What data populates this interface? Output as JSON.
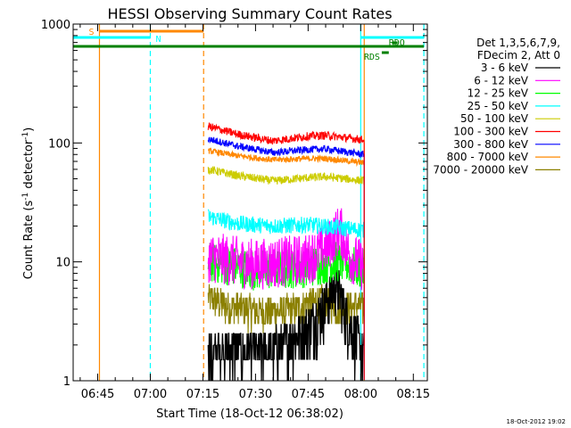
{
  "title": "HESSI Observing Summary Count Rates",
  "timestamp": "18-Oct-2012 19:02",
  "chart_data": {
    "type": "line",
    "title": "HESSI Observing Summary Count Rates",
    "xlabel": "Start Time (18-Oct-12 06:38:02)",
    "ylabel_main": "Count Rate (s",
    "ylabel_sup1": "-1",
    "ylabel_mid": " detector",
    "ylabel_sup2": "-1",
    "ylabel_end": ")",
    "y_scale": "log",
    "ylim": [
      1,
      1000
    ],
    "xlim": [
      "06:38",
      "08:19"
    ],
    "x_ticks": [
      {
        "t": 45,
        "label": "06:45"
      },
      {
        "t": 60,
        "label": "07:00"
      },
      {
        "t": 75,
        "label": "07:15"
      },
      {
        "t": 90,
        "label": "07:30"
      },
      {
        "t": 105,
        "label": "07:45"
      },
      {
        "t": 120,
        "label": "08:00"
      },
      {
        "t": 135,
        "label": "08:15"
      }
    ],
    "y_ticks": [
      {
        "v": 1,
        "label": "1"
      },
      {
        "v": 10,
        "label": "10"
      },
      {
        "v": 100,
        "label": "100"
      },
      {
        "v": 1000,
        "label": "1000"
      }
    ],
    "legend": {
      "position": "right",
      "header": [
        "Det 1,3,5,6,7,9,",
        "FDecim 2, Att 0"
      ]
    },
    "series": [
      {
        "name": "3 - 6 keV",
        "color": "#000000",
        "start": 76.5,
        "end": 121.0,
        "mean": 1.6,
        "jitter": 0.55,
        "trend": [
          [
            76.5,
            1.5
          ],
          [
            95,
            1.6
          ],
          [
            105,
            2.4
          ],
          [
            110,
            4
          ],
          [
            113,
            6
          ],
          [
            116,
            3
          ],
          [
            121,
            1.5
          ]
        ]
      },
      {
        "name": "6 - 12 keV",
        "color": "#ff00ff",
        "start": 76.5,
        "end": 121.0,
        "mean": 10,
        "jitter": 0.25,
        "trend": [
          [
            76.5,
            11
          ],
          [
            90,
            9.5
          ],
          [
            105,
            10.5
          ],
          [
            111,
            14
          ],
          [
            114,
            19
          ],
          [
            117,
            11
          ],
          [
            121,
            9
          ]
        ]
      },
      {
        "name": "12 - 25 keV",
        "color": "#00ff00",
        "start": 76.5,
        "end": 121.0,
        "mean": 9,
        "jitter": 0.2,
        "trend": [
          [
            76.5,
            10
          ],
          [
            90,
            8.5
          ],
          [
            105,
            9
          ],
          [
            112,
            10
          ],
          [
            115,
            10
          ],
          [
            121,
            8.5
          ]
        ]
      },
      {
        "name": "25 - 50 keV",
        "color": "#00ffff",
        "start": 76.5,
        "end": 121.0,
        "mean": 20,
        "jitter": 0.08,
        "trend": [
          [
            76.5,
            24
          ],
          [
            85,
            21
          ],
          [
            95,
            20
          ],
          [
            105,
            20.5
          ],
          [
            112,
            19.5
          ],
          [
            121,
            18.5
          ]
        ]
      },
      {
        "name": "50 - 100 keV",
        "color": "#cccc00",
        "start": 76.5,
        "end": 121.0,
        "mean": 50,
        "jitter": 0.04,
        "trend": [
          [
            76.5,
            60
          ],
          [
            85,
            53
          ],
          [
            95,
            48
          ],
          [
            105,
            51
          ],
          [
            110,
            52
          ],
          [
            121,
            48
          ]
        ]
      },
      {
        "name": "100 - 300 keV",
        "color": "#ff0000",
        "start": 76.5,
        "end": 121.0,
        "mean": 110,
        "jitter": 0.04,
        "trend": [
          [
            76.5,
            138
          ],
          [
            85,
            118
          ],
          [
            95,
            104
          ],
          [
            105,
            114
          ],
          [
            110,
            116
          ],
          [
            121,
            106
          ]
        ]
      },
      {
        "name": "300 - 800 keV",
        "color": "#0000ff",
        "start": 76.5,
        "end": 121.0,
        "mean": 90,
        "jitter": 0.035,
        "trend": [
          [
            76.5,
            108
          ],
          [
            85,
            94
          ],
          [
            95,
            83
          ],
          [
            105,
            88
          ],
          [
            110,
            89
          ],
          [
            121,
            80
          ]
        ]
      },
      {
        "name": "800 - 7000 keV",
        "color": "#ff8800",
        "start": 76.5,
        "end": 121.0,
        "mean": 75,
        "jitter": 0.03,
        "trend": [
          [
            76.5,
            86
          ],
          [
            85,
            78
          ],
          [
            95,
            72
          ],
          [
            105,
            74
          ],
          [
            110,
            74
          ],
          [
            121,
            68
          ]
        ]
      },
      {
        "name": "7000 - 20000 keV",
        "color": "#8b8000",
        "start": 76.5,
        "end": 121.0,
        "mean": 4.5,
        "jitter": 0.15,
        "trend": [
          [
            76.5,
            5
          ],
          [
            82,
            4.3
          ],
          [
            92,
            3.8
          ],
          [
            100,
            4
          ],
          [
            106,
            4.6
          ],
          [
            110,
            4.8
          ],
          [
            114,
            4.3
          ],
          [
            121,
            4.3
          ]
        ]
      }
    ],
    "flag_bars": [
      {
        "label": "S",
        "color": "#ff8800",
        "t0": 45.5,
        "t1": 75.2,
        "y": 35
      },
      {
        "label": "N",
        "color": "#00ffff",
        "t0": 38,
        "t1": 60,
        "y": 42
      },
      {
        "label": "",
        "color": "#00ffff",
        "t0": 120,
        "t1": 138,
        "y": 42
      },
      {
        "label": "",
        "color": "#008000",
        "t0": 38,
        "t1": 138,
        "y": 52
      },
      {
        "label": "RDS",
        "color": "#008000",
        "t0": 126,
        "t1": 128,
        "y": 59
      },
      {
        "label": "RDO",
        "color": "#008000",
        "t0": 129,
        "t1": 130.5,
        "y": 48
      }
    ],
    "vlines": [
      {
        "t": 45.5,
        "color": "#ff8800",
        "style": "solid"
      },
      {
        "t": 75.2,
        "color": "#ff8800",
        "style": "dashed"
      },
      {
        "t": 60,
        "color": "#00ffff",
        "style": "dashed"
      },
      {
        "t": 120,
        "color": "#00ffff",
        "style": "solid"
      },
      {
        "t": 121,
        "color": "#ff8800",
        "style": "solid"
      },
      {
        "t": 138,
        "color": "#00ffff",
        "style": "dashed"
      }
    ]
  }
}
